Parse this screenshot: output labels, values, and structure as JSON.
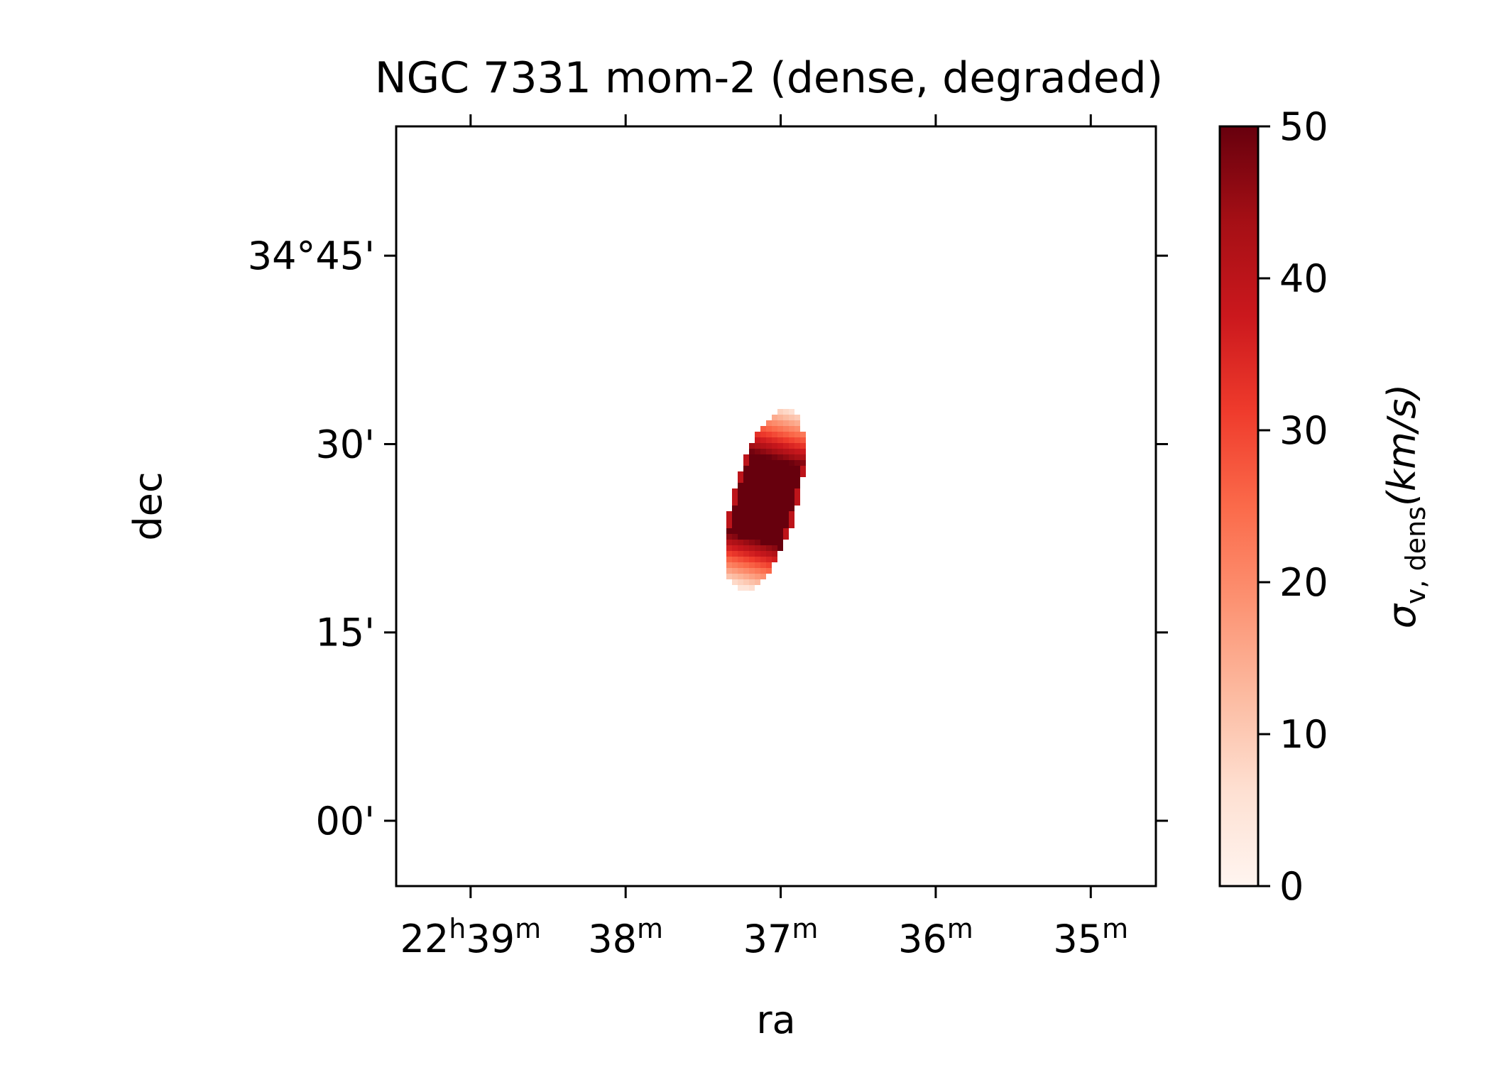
{
  "chart_data": {
    "type": "heatmap",
    "title": "NGC 7331 mom-2 (dense, degraded)",
    "xlabel": "ra",
    "ylabel": "dec",
    "x_ticks": [
      {
        "value": 39,
        "labels": [
          {
            "t": "22",
            "sup": false
          },
          {
            "t": "h",
            "sup": true
          },
          {
            "t": "39",
            "sup": false
          },
          {
            "t": "m",
            "sup": true
          }
        ]
      },
      {
        "value": 38,
        "labels": [
          {
            "t": "38",
            "sup": false
          },
          {
            "t": "m",
            "sup": true
          }
        ]
      },
      {
        "value": 37,
        "labels": [
          {
            "t": "37",
            "sup": false
          },
          {
            "t": "m",
            "sup": true
          }
        ]
      },
      {
        "value": 36,
        "labels": [
          {
            "t": "36",
            "sup": false
          },
          {
            "t": "m",
            "sup": true
          }
        ]
      },
      {
        "value": 35,
        "labels": [
          {
            "t": "35",
            "sup": false
          },
          {
            "t": "m",
            "sup": true
          }
        ]
      }
    ],
    "y_ticks": [
      {
        "value": 45,
        "label": "34°45'"
      },
      {
        "value": 30,
        "label": "30'"
      },
      {
        "value": 15,
        "label": "15'"
      },
      {
        "value": 0,
        "label": "00'"
      }
    ],
    "xlim": [
      39.48,
      34.58
    ],
    "ylim": [
      -5.2,
      55.3
    ],
    "colorbar": {
      "colormap": "Reds",
      "vmin": 0,
      "vmax": 50,
      "ticks": [
        "0",
        "10",
        "20",
        "30",
        "40",
        "50"
      ],
      "label_sigma": "σ",
      "label_sub": "v, dens",
      "label_units": "(km/s)"
    },
    "emission": {
      "center_ra_min": 37.1,
      "center_dec_arcmin": 25.5,
      "position_angle_deg": 15,
      "major_extent_arcmin": 15,
      "minor_extent_ra_min": 0.2,
      "core_sigma_kms": 50,
      "outskirts_sigma_kms": 5
    }
  }
}
